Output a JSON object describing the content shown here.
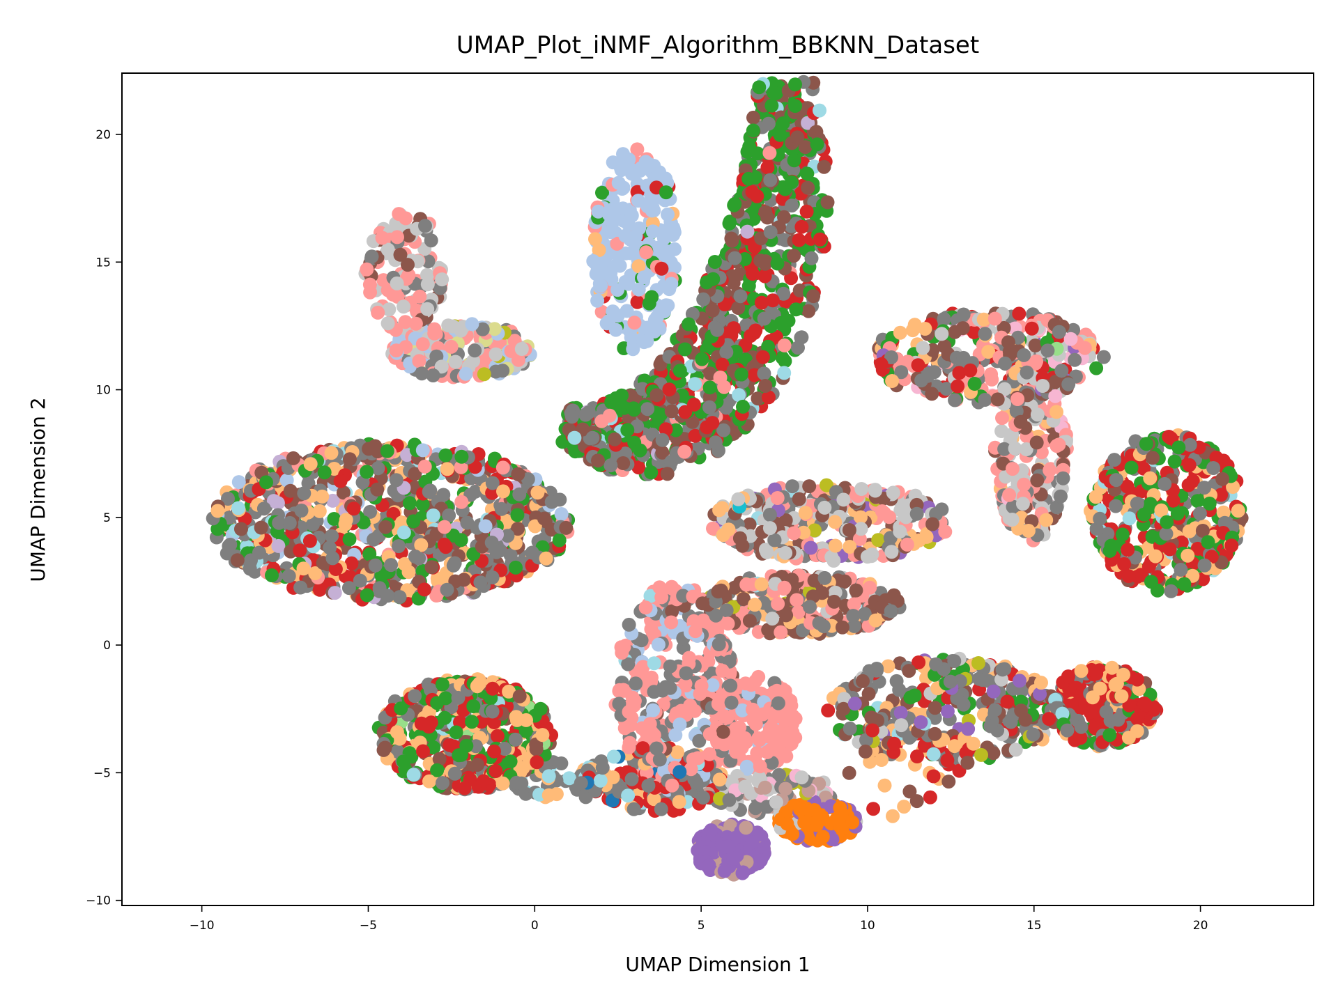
{
  "chart_data": {
    "type": "scatter",
    "title": "UMAP_Plot_iNMF_Algorithm_BBKNN_Dataset",
    "xlabel": "UMAP Dimension 1",
    "ylabel": "UMAP Dimension 2",
    "xlim": [
      -12.4,
      23.4
    ],
    "ylim": [
      -10.2,
      22.4
    ],
    "xticks": [
      -10,
      -5,
      0,
      5,
      10,
      15,
      20
    ],
    "yticks": [
      -10,
      -5,
      0,
      5,
      10,
      15,
      20
    ],
    "xtick_labels": [
      "−10",
      "−5",
      "0",
      "5",
      "10",
      "15",
      "20"
    ],
    "ytick_labels": [
      "−10",
      "−5",
      "0",
      "5",
      "10",
      "15",
      "20"
    ],
    "grid": false,
    "legend": "none",
    "palette": [
      "#1f77b4",
      "#aec7e8",
      "#ff7f0e",
      "#ffbb78",
      "#2ca02c",
      "#98df8a",
      "#d62728",
      "#ff9896",
      "#9467bd",
      "#c5b0d5",
      "#8c564b",
      "#c49c94",
      "#e377c2",
      "#f7b6d2",
      "#7f7f7f",
      "#c7c7c7",
      "#bcbd22",
      "#dbdb8d",
      "#17becf",
      "#9edae5"
    ],
    "clusters": [
      {
        "center": [
          -4.3,
          4.8
        ],
        "spread": [
          5.4,
          3.1
        ],
        "count": 900,
        "colors": {
          "#ffbb78": 0.16,
          "#7f7f7f": 0.3,
          "#8c564b": 0.16,
          "#2ca02c": 0.12,
          "#d62728": 0.12,
          "#ff9896": 0.05,
          "#aec7e8": 0.03,
          "#9edae5": 0.03,
          "#c5b0d5": 0.03
        }
      },
      {
        "center": [
          -2.1,
          -3.5
        ],
        "spread": [
          2.6,
          2.2
        ],
        "count": 520,
        "colors": {
          "#ffbb78": 0.2,
          "#d62728": 0.28,
          "#2ca02c": 0.24,
          "#7f7f7f": 0.16,
          "#8c564b": 0.08,
          "#98df8a": 0.02,
          "#9edae5": 0.02
        }
      },
      {
        "center": [
          17.1,
          -2.4
        ],
        "spread": [
          1.6,
          1.6
        ],
        "count": 260,
        "colors": {
          "#d62728": 0.38,
          "#ffbb78": 0.2,
          "#7f7f7f": 0.2,
          "#2ca02c": 0.12,
          "#8c564b": 0.06,
          "#9edae5": 0.04
        }
      },
      {
        "center": [
          19.0,
          5.2
        ],
        "spread": [
          2.3,
          3.1
        ],
        "count": 420,
        "colors": {
          "#ffbb78": 0.2,
          "#d62728": 0.28,
          "#2ca02c": 0.22,
          "#7f7f7f": 0.18,
          "#8c564b": 0.08,
          "#9edae5": 0.04
        }
      },
      {
        "center": [
          8.9,
          4.8
        ],
        "spread": [
          3.6,
          1.5
        ],
        "count": 320,
        "colors": {
          "#ff9896": 0.22,
          "#c7c7c7": 0.22,
          "#8c564b": 0.2,
          "#7f7f7f": 0.16,
          "#ffbb78": 0.1,
          "#9467bd": 0.04,
          "#17becf": 0.02,
          "#bcbd22": 0.02,
          "#9edae5": 0.02
        }
      },
      {
        "center": [
          8.0,
          1.6
        ],
        "spread": [
          3.0,
          1.2
        ],
        "count": 280,
        "colors": {
          "#8c564b": 0.4,
          "#7f7f7f": 0.22,
          "#ff9896": 0.16,
          "#ffbb78": 0.14,
          "#c7c7c7": 0.04,
          "#bcbd22": 0.02,
          "#9edae5": 0.02
        }
      },
      {
        "center": [
          12.3,
          -2.6
        ],
        "spread": [
          3.5,
          2.1
        ],
        "count": 300,
        "colors": {
          "#7f7f7f": 0.3,
          "#8c564b": 0.2,
          "#ffbb78": 0.14,
          "#d62728": 0.12,
          "#2ca02c": 0.1,
          "#9467bd": 0.06,
          "#c7c7c7": 0.04,
          "#9edae5": 0.02,
          "#bcbd22": 0.02
        }
      },
      {
        "center": [
          4.2,
          -1.8
        ],
        "spread": [
          1.8,
          4.2
        ],
        "count": 380,
        "colors": {
          "#ff9896": 0.55,
          "#7f7f7f": 0.28,
          "#aec7e8": 0.1,
          "#8c564b": 0.05,
          "#9edae5": 0.02
        }
      },
      {
        "center": [
          6.6,
          -3.1
        ],
        "spread": [
          1.3,
          1.9
        ],
        "count": 190,
        "colors": {
          "#ff9896": 0.8,
          "#aec7e8": 0.1,
          "#7f7f7f": 0.1
        }
      },
      {
        "center": [
          3.6,
          -5.3
        ],
        "spread": [
          2.1,
          1.3
        ],
        "count": 150,
        "colors": {
          "#d62728": 0.4,
          "#7f7f7f": 0.35,
          "#ffbb78": 0.15,
          "#9edae5": 0.05,
          "#1f77b4": 0.05
        }
      },
      {
        "center": [
          5.9,
          -8.0
        ],
        "spread": [
          1.1,
          1.0
        ],
        "count": 140,
        "colors": {
          "#9467bd": 0.85,
          "#c49c94": 0.15
        }
      },
      {
        "center": [
          8.5,
          -6.9
        ],
        "spread": [
          1.2,
          0.8
        ],
        "count": 140,
        "colors": {
          "#ff7f0e": 0.75,
          "#9467bd": 0.15,
          "#c7c7c7": 0.1
        }
      },
      {
        "center": [
          7.1,
          -5.8
        ],
        "spread": [
          1.9,
          0.8
        ],
        "count": 90,
        "colors": {
          "#c7c7c7": 0.35,
          "#7f7f7f": 0.25,
          "#f7b6d2": 0.15,
          "#c49c94": 0.15,
          "#bcbd22": 0.1
        }
      },
      {
        "center": [
          0.8,
          -5.3
        ],
        "spread": [
          1.6,
          0.8
        ],
        "count": 50,
        "colors": {
          "#7f7f7f": 0.6,
          "#9edae5": 0.2,
          "#ffbb78": 0.2
        }
      },
      {
        "center": [
          11.2,
          -4.8
        ],
        "spread": [
          1.8,
          2.5
        ],
        "count": 40,
        "colors": {
          "#ffbb78": 0.4,
          "#d62728": 0.35,
          "#8c564b": 0.25
        }
      },
      {
        "center": [
          13.6,
          11.3
        ],
        "spread": [
          3.5,
          1.8
        ],
        "count": 330,
        "colors": {
          "#ff9896": 0.22,
          "#7f7f7f": 0.2,
          "#8c564b": 0.14,
          "#d62728": 0.12,
          "#2ca02c": 0.1,
          "#c7c7c7": 0.08,
          "#ffbb78": 0.06,
          "#f7b6d2": 0.04,
          "#9467bd": 0.02,
          "#98df8a": 0.02
        }
      },
      {
        "center": [
          14.9,
          7.6
        ],
        "spread": [
          1.1,
          3.6
        ],
        "count": 200,
        "colors": {
          "#ff9896": 0.3,
          "#c7c7c7": 0.25,
          "#7f7f7f": 0.2,
          "#ffbb78": 0.1,
          "#8c564b": 0.1,
          "#f7b6d2": 0.05
        }
      },
      {
        "center": [
          3.0,
          15.5
        ],
        "spread": [
          1.3,
          4.0
        ],
        "count": 260,
        "colors": {
          "#aec7e8": 0.75,
          "#ff9896": 0.1,
          "#2ca02c": 0.08,
          "#ffbb78": 0.04,
          "#d62728": 0.03
        }
      },
      {
        "center": [
          -2.2,
          11.5
        ],
        "spread": [
          2.1,
          1.1
        ],
        "count": 180,
        "colors": {
          "#ff9896": 0.3,
          "#aec7e8": 0.22,
          "#7f7f7f": 0.2,
          "#c7c7c7": 0.15,
          "#dbdb8d": 0.08,
          "#bcbd22": 0.05
        }
      },
      {
        "center": [
          -3.9,
          14.6
        ],
        "spread": [
          1.2,
          2.4
        ],
        "count": 130,
        "colors": {
          "#ff9896": 0.35,
          "#c7c7c7": 0.35,
          "#7f7f7f": 0.2,
          "#8c564b": 0.1
        }
      }
    ],
    "crescent": {
      "center": [
        2.3,
        20.0
      ],
      "radius_x": 5.3,
      "radius_y": 11.8,
      "thickness": 2.6,
      "angle_range": [
        -105,
        25
      ],
      "count": 1100,
      "colors": {
        "#2ca02c": 0.34,
        "#7f7f7f": 0.24,
        "#8c564b": 0.2,
        "#d62728": 0.16,
        "#ff9896": 0.03,
        "#9edae5": 0.02,
        "#c5b0d5": 0.01
      }
    }
  }
}
